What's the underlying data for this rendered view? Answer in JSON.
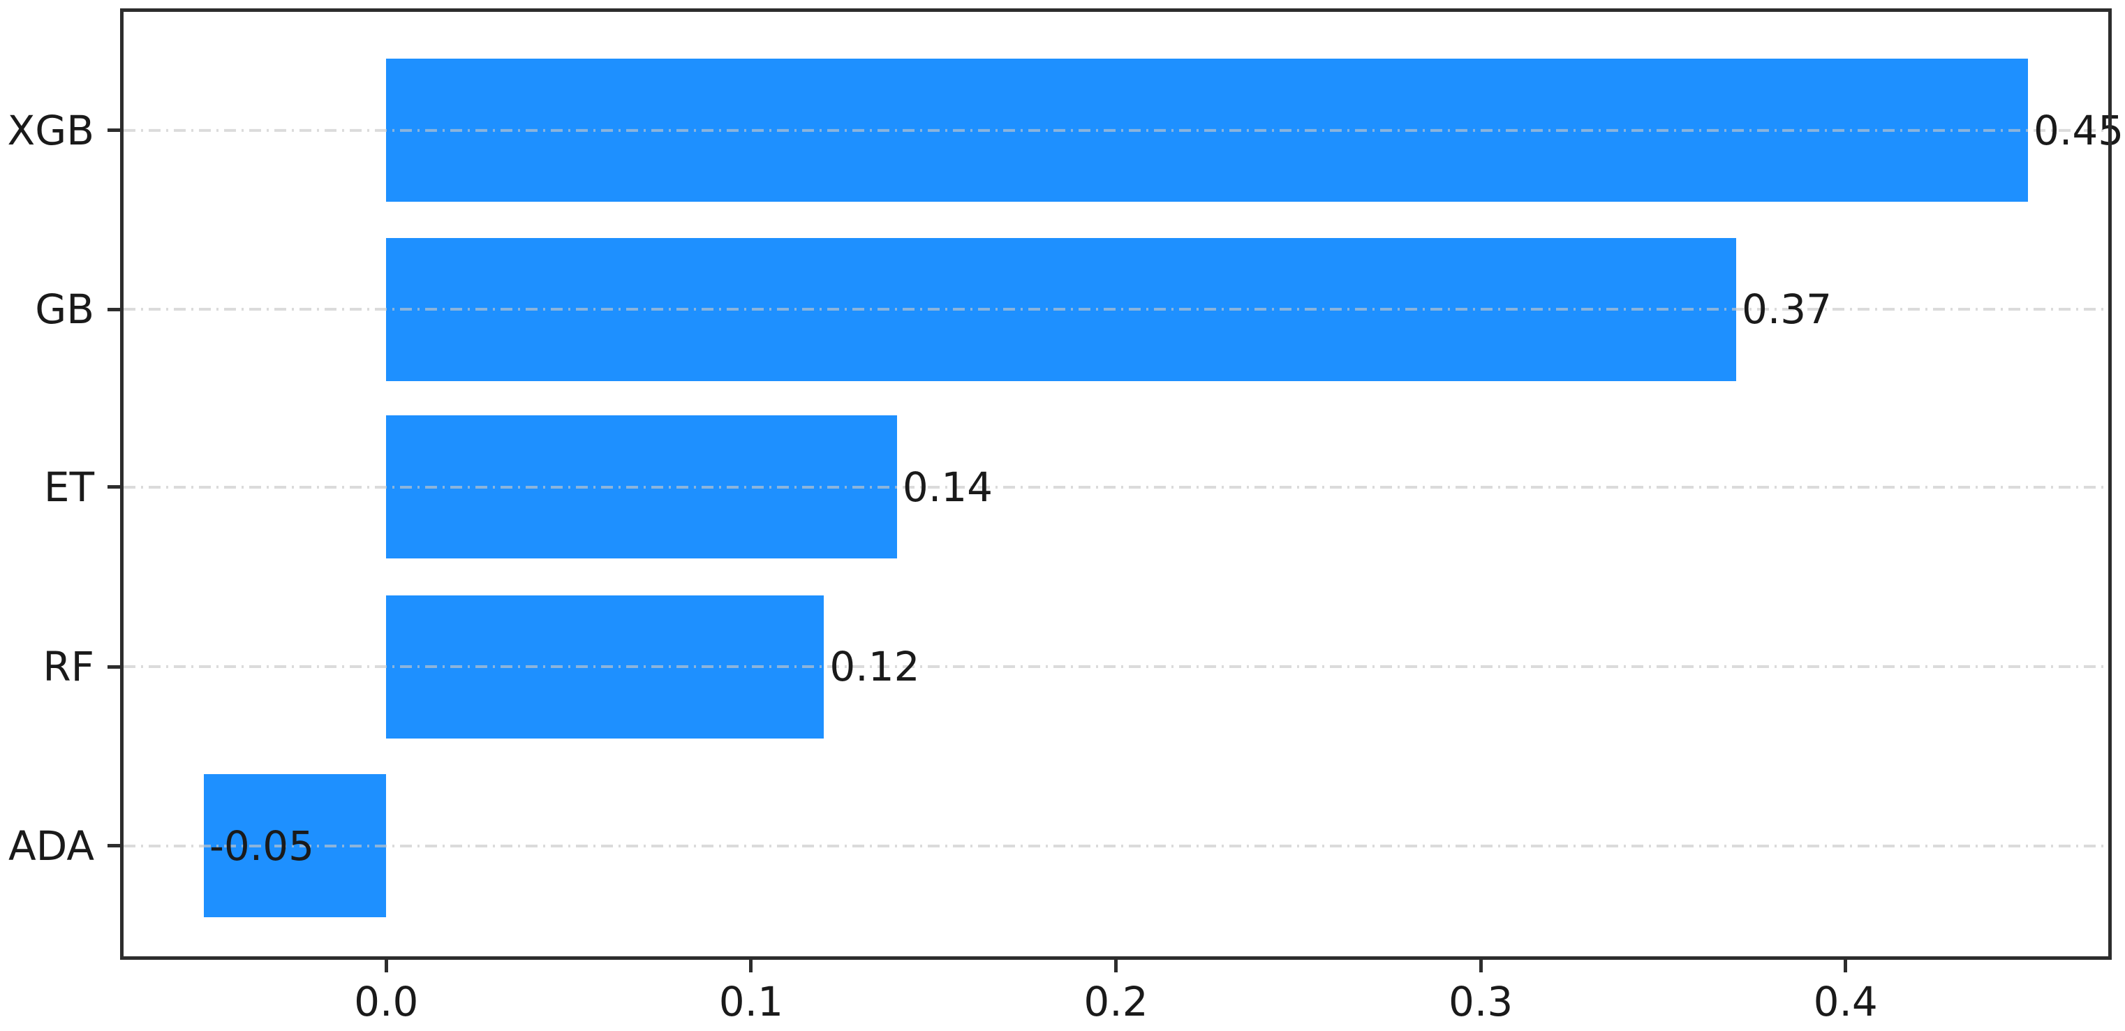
{
  "chart_data": {
    "type": "bar",
    "orientation": "horizontal",
    "title": "",
    "xlabel": "",
    "ylabel": "",
    "categories": [
      "XGB",
      "GB",
      "ET",
      "RF",
      "ADA"
    ],
    "values": [
      0.45,
      0.37,
      0.14,
      0.12,
      -0.05
    ],
    "value_labels": [
      "0.45",
      "0.37",
      "0.14",
      "0.12",
      "-0.05"
    ],
    "x_ticks": [
      0.0,
      0.1,
      0.2,
      0.3,
      0.4
    ],
    "x_tick_labels": [
      "0.0",
      "0.1",
      "0.2",
      "0.3",
      "0.4"
    ],
    "xlim": [
      -0.072,
      0.472
    ],
    "grid": "horizontal dash-dot, drawn above bars",
    "legend_position": "none",
    "bar_color": "#1E90FF",
    "grid_color": "#C8C8C8",
    "spine_color": "#2D2D2D",
    "text_color": "#1A1A1A",
    "background_color": "#FFFFFF"
  }
}
